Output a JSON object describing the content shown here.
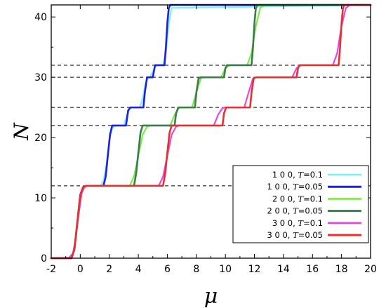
{
  "chart_data": {
    "type": "line",
    "xlabel": "μ",
    "ylabel": "N",
    "xlim": [
      -2,
      20
    ],
    "ylim": [
      0,
      42
    ],
    "x_ticks": [
      -2,
      0,
      2,
      4,
      6,
      8,
      10,
      12,
      14,
      16,
      18,
      20
    ],
    "y_ticks": [
      0,
      10,
      20,
      30,
      40
    ],
    "grid": false,
    "legend_position": "bottom-right",
    "reference_lines_y": [
      12,
      22,
      25,
      30,
      32
    ],
    "series": [
      {
        "name": "1 0 0, T=0.1",
        "color": "#7af0f0",
        "width": 2.2,
        "x": [
          -2,
          -0.8,
          -0.5,
          -0.3,
          -0.1,
          0.1,
          0.3,
          0.5,
          1.4,
          1.6,
          1.8,
          2.0,
          2.2,
          2.4,
          3.0,
          3.2,
          3.4,
          3.6,
          4.1,
          4.3,
          4.5,
          4.7,
          4.8,
          5.0,
          5.2,
          5.3,
          5.7,
          5.9,
          6.1,
          6.3,
          20
        ],
        "y": [
          0,
          0,
          0.8,
          3.5,
          7.5,
          10.8,
          11.8,
          12,
          12,
          12.8,
          15.5,
          19.5,
          21.5,
          22,
          22,
          23.5,
          24.8,
          25,
          25,
          26.5,
          29,
          30,
          30,
          31,
          31.8,
          32,
          32,
          34,
          39,
          41.5,
          42
        ]
      },
      {
        "name": "1 0 0, T=0.05",
        "color": "#1f1fdc",
        "width": 2.6,
        "x": [
          -2,
          -0.6,
          -0.4,
          -0.2,
          0,
          0.2,
          0.4,
          1.6,
          1.75,
          1.9,
          2.05,
          2.2,
          3.15,
          3.3,
          3.45,
          4.35,
          4.45,
          4.6,
          4.75,
          5.0,
          5.15,
          5.8,
          5.9,
          6.0,
          6.1,
          6.2,
          20
        ],
        "y": [
          0,
          0,
          1.5,
          6,
          10.5,
          11.8,
          12,
          12,
          13.5,
          17,
          20.5,
          22,
          22,
          24.5,
          25,
          25,
          27.5,
          30,
          30,
          30,
          32,
          32,
          35,
          39,
          41.5,
          42,
          42
        ]
      },
      {
        "name": "2 0 0, T=0.1",
        "color": "#7fe84a",
        "width": 2.2,
        "x": [
          -2,
          -0.8,
          -0.5,
          -0.3,
          -0.1,
          0.1,
          0.3,
          0.5,
          3.4,
          3.7,
          4.0,
          4.3,
          4.6,
          4.8,
          6.2,
          6.5,
          6.8,
          7.0,
          7.7,
          8.0,
          8.3,
          8.5,
          9.7,
          10.0,
          10.3,
          11.5,
          11.8,
          12.1,
          12.4,
          12.7,
          20
        ],
        "y": [
          0,
          0,
          0.8,
          3.5,
          7.5,
          10.8,
          11.8,
          12,
          12,
          13.5,
          17,
          20.5,
          21.8,
          22,
          22,
          23.8,
          24.9,
          25,
          25,
          27.5,
          29.8,
          30,
          30,
          31.5,
          32,
          32,
          34,
          38.5,
          41.5,
          42,
          42
        ]
      },
      {
        "name": "2 0 0, T=0.05",
        "color": "#3a7d4a",
        "width": 2.6,
        "x": [
          -2,
          -0.6,
          -0.4,
          -0.2,
          0,
          0.2,
          0.4,
          3.7,
          3.85,
          4.0,
          4.15,
          4.3,
          6.5,
          6.6,
          6.75,
          7.9,
          8.0,
          8.15,
          8.3,
          9.9,
          10.0,
          10.1,
          11.8,
          11.9,
          12.0,
          12.1,
          12.2,
          20
        ],
        "y": [
          0,
          0,
          1.5,
          6,
          10.5,
          11.8,
          12,
          12,
          14,
          17.5,
          20.8,
          22,
          22,
          24,
          25,
          25,
          27.5,
          29.8,
          30,
          30,
          31.5,
          32,
          32,
          35,
          39,
          41.5,
          42,
          42
        ]
      },
      {
        "name": "3 0 0, T=0.1",
        "color": "#e04ae0",
        "width": 2.2,
        "x": [
          -2,
          -0.8,
          -0.5,
          -0.3,
          -0.1,
          0.1,
          0.3,
          0.5,
          5.4,
          5.7,
          6.0,
          6.3,
          6.6,
          6.8,
          9.2,
          9.5,
          9.8,
          10.0,
          11.3,
          11.6,
          11.9,
          12.1,
          14.6,
          14.9,
          15.2,
          17.4,
          17.7,
          18.0,
          18.3,
          18.6,
          20
        ],
        "y": [
          0,
          0,
          0.8,
          3.5,
          7.5,
          10.8,
          11.8,
          12,
          12,
          13.5,
          17,
          20.5,
          21.8,
          22,
          22,
          23.8,
          24.9,
          25,
          25,
          27.5,
          29.8,
          30,
          30,
          31.5,
          32,
          32,
          34,
          38.5,
          41.5,
          42,
          42
        ]
      },
      {
        "name": "3 0 0, T=0.05",
        "color": "#e53030",
        "width": 2.6,
        "x": [
          -2,
          -0.6,
          -0.4,
          -0.2,
          0,
          0.2,
          0.4,
          5.7,
          5.85,
          6.0,
          6.15,
          6.3,
          9.8,
          9.9,
          10.05,
          11.7,
          11.8,
          11.95,
          12.1,
          14.9,
          15.0,
          15.1,
          17.8,
          17.9,
          18.0,
          18.1,
          18.2,
          20
        ],
        "y": [
          0,
          0,
          1.5,
          6,
          10.5,
          11.8,
          12,
          12,
          14,
          17.5,
          20.8,
          22,
          22,
          24,
          25,
          25,
          27.5,
          29.8,
          30,
          30,
          31.5,
          32,
          32,
          35,
          39,
          41.5,
          42,
          42
        ]
      }
    ]
  }
}
